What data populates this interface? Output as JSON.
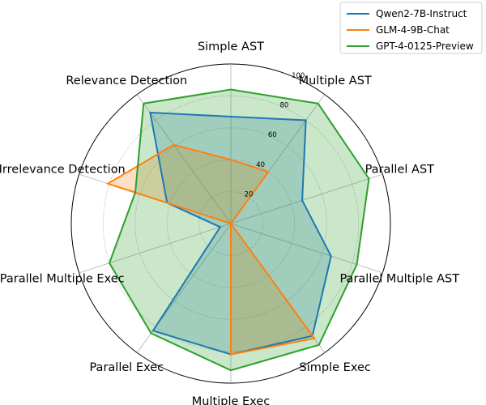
{
  "chart_data": {
    "type": "radar",
    "title": "",
    "axes": [
      "Simple AST",
      "Multiple AST",
      "Parallel AST",
      "Parallel Multiple AST",
      "Simple Exec",
      "Multiple Exec",
      "Parallel Exec",
      "Parallel Multiple Exec",
      "Irrelevance Detection",
      "Relevance Detection"
    ],
    "rlim": [
      0,
      100
    ],
    "rticks": [
      20,
      40,
      60,
      80,
      100
    ],
    "rtick_labels": [
      "20",
      "40",
      "60",
      "80",
      "100"
    ],
    "grid": true,
    "legend_position": "upper-right",
    "series": [
      {
        "name": "Qwen2-7B-Instruct",
        "color": "#1f77b4",
        "values": [
          67,
          80,
          47,
          66,
          87,
          82,
          83,
          7,
          42,
          86
        ]
      },
      {
        "name": "GLM-4-9B-Chat",
        "color": "#ff7f0e",
        "values": [
          40,
          40,
          0,
          0,
          89,
          82,
          0,
          0,
          81,
          61
        ]
      },
      {
        "name": "GPT-4-0125-Preview",
        "color": "#2ca02c",
        "values": [
          84,
          93,
          91,
          83,
          94,
          92,
          85,
          80,
          63,
          93
        ]
      }
    ]
  }
}
